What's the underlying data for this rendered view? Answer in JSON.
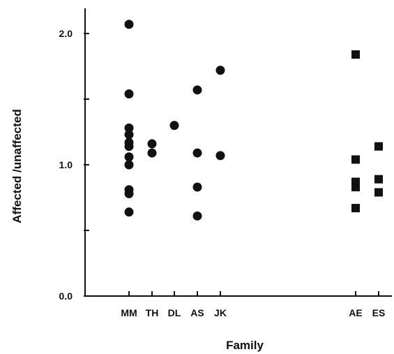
{
  "chart_data": {
    "type": "scatter",
    "xlabel": "Family",
    "ylabel": "Affected /unaffected",
    "ylim": [
      0,
      2.2
    ],
    "yticks": [
      "0.0",
      "1.0",
      "2.0"
    ],
    "categories": [
      "MM",
      "TH",
      "DL",
      "AS",
      "JK",
      "AE",
      "ES"
    ],
    "grid": false,
    "series": [
      {
        "marker": "circle",
        "points": [
          {
            "family": "MM",
            "y": 2.07
          },
          {
            "family": "MM",
            "y": 1.54
          },
          {
            "family": "MM",
            "y": 1.28
          },
          {
            "family": "MM",
            "y": 1.23
          },
          {
            "family": "MM",
            "y": 1.17
          },
          {
            "family": "MM",
            "y": 1.14
          },
          {
            "family": "MM",
            "y": 1.06
          },
          {
            "family": "MM",
            "y": 1.0
          },
          {
            "family": "MM",
            "y": 0.81
          },
          {
            "family": "MM",
            "y": 0.78
          },
          {
            "family": "MM",
            "y": 0.64
          },
          {
            "family": "TH",
            "y": 1.16
          },
          {
            "family": "TH",
            "y": 1.09
          },
          {
            "family": "DL",
            "y": 1.3
          },
          {
            "family": "AS",
            "y": 1.57
          },
          {
            "family": "AS",
            "y": 1.09
          },
          {
            "family": "AS",
            "y": 0.83
          },
          {
            "family": "AS",
            "y": 0.61
          },
          {
            "family": "JK",
            "y": 1.72
          },
          {
            "family": "JK",
            "y": 1.07
          }
        ]
      },
      {
        "marker": "square",
        "points": [
          {
            "family": "AE",
            "y": 1.84
          },
          {
            "family": "AE",
            "y": 1.04
          },
          {
            "family": "AE",
            "y": 0.87
          },
          {
            "family": "AE",
            "y": 0.83
          },
          {
            "family": "AE",
            "y": 0.67
          },
          {
            "family": "ES",
            "y": 1.14
          },
          {
            "family": "ES",
            "y": 0.89
          },
          {
            "family": "ES",
            "y": 0.79
          }
        ]
      }
    ]
  }
}
